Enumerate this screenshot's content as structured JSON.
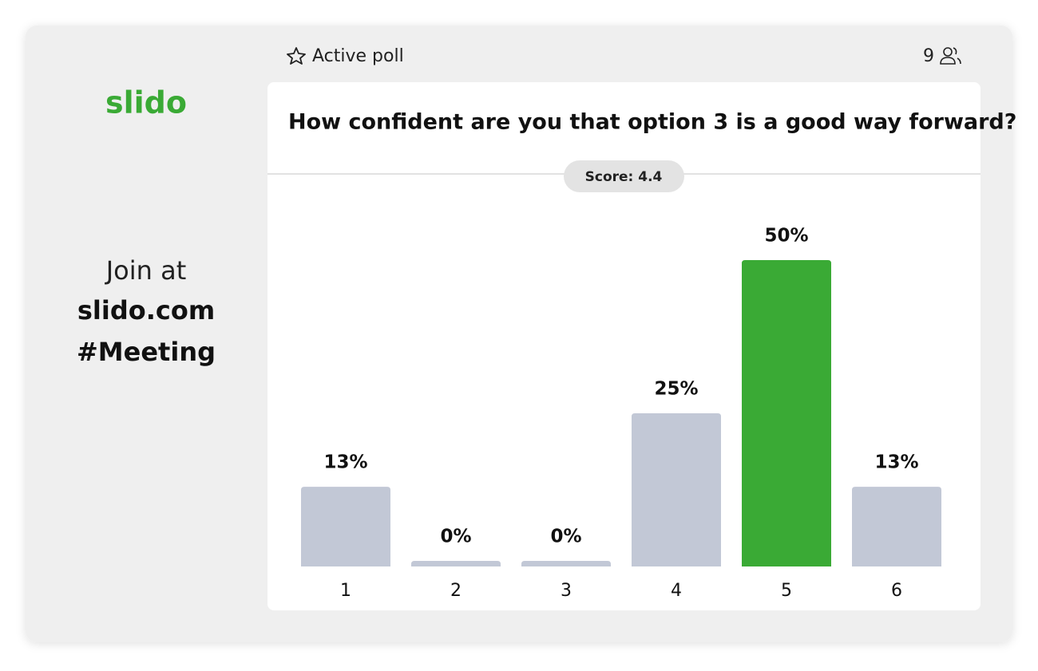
{
  "brand": "slido",
  "join": {
    "label": "Join at",
    "url": "slido.com",
    "code": "#Meeting"
  },
  "header": {
    "status": "Active poll",
    "participants": "9"
  },
  "poll": {
    "question": "How confident are you that option 3 is a good way forward?",
    "score": "Score: 4.4"
  },
  "chart_data": {
    "type": "bar",
    "categories": [
      "1",
      "2",
      "3",
      "4",
      "5",
      "6"
    ],
    "values": [
      13,
      0,
      0,
      25,
      50,
      13
    ],
    "value_labels": [
      "13%",
      "0%",
      "0%",
      "25%",
      "50%",
      "13%"
    ],
    "colors": [
      "#c2c8d6",
      "#c2c8d6",
      "#c2c8d6",
      "#c2c8d6",
      "#3aaa35",
      "#c2c8d6"
    ]
  }
}
